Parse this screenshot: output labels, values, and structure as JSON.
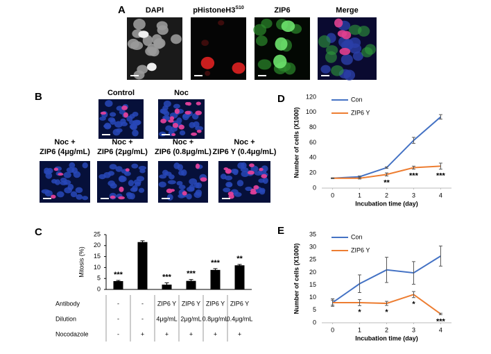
{
  "panels": {
    "a": {
      "letter": "A",
      "titles": [
        "DAPI",
        {
          "text": "pHistoneH3",
          "superscript": "S10"
        },
        "ZIP6",
        "Merge"
      ]
    },
    "b": {
      "letter": "B",
      "top": [
        "Control",
        "Noc"
      ],
      "bottom": [
        [
          "Noc +",
          "ZIP6 (4μg/mL)"
        ],
        [
          "Noc +",
          "ZIP6 (2μg/mL)"
        ],
        [
          "Noc +",
          "ZIP6 (0.8μg/mL)"
        ],
        [
          "Noc +",
          "ZIP6 Y (0.4μg/mL)"
        ]
      ]
    }
  },
  "chart_data": [
    {
      "type": "bar",
      "panel": "C",
      "y_label": "Mitosis (%)",
      "color": "#000000",
      "values": [
        3.8,
        21.6,
        2.2,
        3.9,
        8.9,
        11.0
      ],
      "errors": [
        0.3,
        0.6,
        0.8,
        0.6,
        0.6,
        0.4
      ],
      "annotations": [
        "***",
        null,
        "***",
        "***",
        "***",
        "**"
      ],
      "ylim": [
        0,
        25
      ],
      "yticks": [
        0,
        5,
        10,
        15,
        20,
        25
      ],
      "table": {
        "row_labels": [
          "Antibody",
          "Dilution",
          "Nocodazole"
        ],
        "rows": [
          [
            "-",
            "-",
            "ZIP6 Y",
            "ZIP6 Y",
            "ZIP6 Y",
            "ZIP6 Y"
          ],
          [
            "-",
            "-",
            "4μg/mL",
            "2μg/mL",
            "0.8μg/mL",
            "0.4μg/mL"
          ],
          [
            "-",
            "+",
            "+",
            "+",
            "+",
            "+"
          ]
        ]
      }
    },
    {
      "type": "line",
      "panel": "D",
      "x_label": "Incubation time (day)",
      "y_label": "Number of cells (X1000)",
      "x": [
        0,
        1,
        2,
        3,
        4
      ],
      "xlim": [
        -0.4,
        4.4
      ],
      "xticks": [
        0,
        1,
        2,
        3,
        4
      ],
      "ylim": [
        0,
        120
      ],
      "yticks": [
        0,
        20,
        40,
        60,
        80,
        100,
        120
      ],
      "legend": "upper left",
      "series": [
        {
          "name": "Con",
          "color": "#4472c4",
          "values": [
            13,
            15,
            27,
            63,
            94
          ],
          "errors": [
            0.5,
            1,
            1,
            4,
            3
          ]
        },
        {
          "name": "ZIP6 Y",
          "color": "#ed7d31",
          "values": [
            13,
            13,
            18,
            27,
            29
          ],
          "errors": [
            0.5,
            1,
            2,
            2,
            4
          ],
          "annotations": [
            null,
            null,
            "**",
            "***",
            "***"
          ]
        }
      ]
    },
    {
      "type": "line",
      "panel": "E",
      "x_label": "Incubation time (day)",
      "y_label": "Number of cells (X1000)",
      "x": [
        0,
        1,
        2,
        3,
        4
      ],
      "xlim": [
        -0.4,
        4.4
      ],
      "xticks": [
        0,
        1,
        2,
        3,
        4
      ],
      "ylim": [
        0,
        35
      ],
      "yticks": [
        0,
        5,
        10,
        15,
        20,
        25,
        30,
        35
      ],
      "legend": "upper left",
      "series": [
        {
          "name": "Con",
          "color": "#4472c4",
          "values": [
            8,
            15.5,
            21,
            19.8,
            26.5
          ],
          "errors": [
            1.5,
            3.5,
            5,
            4.5,
            4
          ]
        },
        {
          "name": "ZIP6 Y",
          "color": "#ed7d31",
          "values": [
            8,
            8,
            7.7,
            11.2,
            3.5
          ],
          "errors": [
            1,
            1.2,
            0.8,
            1.2,
            0.3
          ],
          "annotations": [
            null,
            "*",
            "*",
            "*",
            "***"
          ]
        }
      ]
    }
  ]
}
